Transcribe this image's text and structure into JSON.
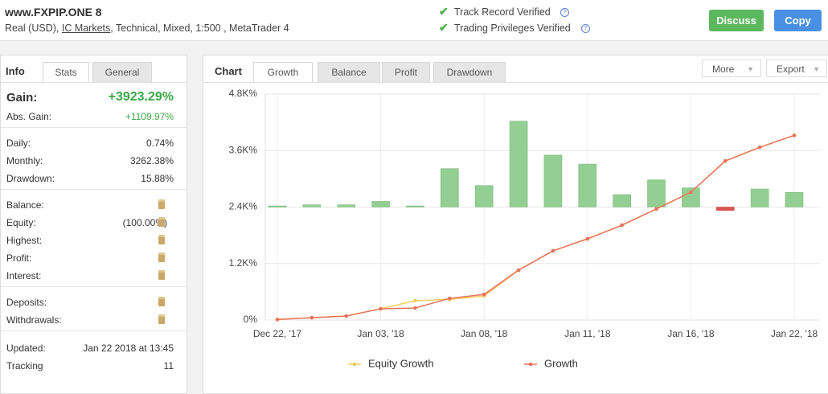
{
  "header": {
    "title": "www.FXPIP.ONE 8",
    "details": [
      "Real (USD), ",
      "IC Markets",
      ", Technical, Mixed, 1:500 , MetaTrader 4"
    ],
    "verifications": [
      "Track Record Verified",
      "Trading Privileges Verified"
    ],
    "buttons": [
      "Discuss",
      "Copy"
    ]
  },
  "info_panel": {
    "tabs": [
      "Info",
      "Stats",
      "General"
    ],
    "active_tab": 1,
    "groups": [
      [
        {
          "label": "Gain:",
          "value": "+3923.29%"
        },
        {
          "label": "Abs. Gain:",
          "value": "+1109.97%"
        }
      ],
      [
        {
          "label": "Daily:",
          "value": "0.74%"
        },
        {
          "label": "Monthly:",
          "value": "3262.38%"
        },
        {
          "label": "Drawdown:",
          "value": "15.88%"
        }
      ],
      [
        {
          "label": "Balance:",
          "locked": true
        },
        {
          "label": "Equity:",
          "value": "(100.00%)",
          "locked": true
        },
        {
          "label": "Highest:",
          "locked": true
        },
        {
          "label": "Profit:",
          "locked": true
        },
        {
          "label": "Interest:",
          "locked": true
        }
      ],
      [
        {
          "label": "Deposits:",
          "locked": true
        },
        {
          "label": "Withdrawals:",
          "locked": true
        }
      ],
      [
        {
          "label": "Updated:",
          "value": "Jan 22 2018 at 13:45"
        },
        {
          "label": "Tracking",
          "value": "11"
        }
      ]
    ]
  },
  "chart_panel": {
    "tabs": [
      "Chart",
      "Growth",
      "Balance",
      "Profit",
      "Drawdown"
    ],
    "active_tab": 1,
    "menus": [
      "More",
      "Export"
    ]
  },
  "chart_data": {
    "type": "combo",
    "categories": [
      "Dec 22, '17",
      null,
      null,
      "Jan 03, '18",
      null,
      null,
      "Jan 08, '18",
      null,
      null,
      "Jan 11, '18",
      null,
      null,
      "Jan 16, '18",
      null,
      null,
      "Jan 22, '18"
    ],
    "ylim": [
      0,
      4800
    ],
    "yticks": [
      {
        "value": 0,
        "label": "0%"
      },
      {
        "value": 1200,
        "label": "1.2K%"
      },
      {
        "value": 2400,
        "label": "2.4K%"
      },
      {
        "value": 3600,
        "label": "3.6K%"
      },
      {
        "value": 4800,
        "label": "4.8K%"
      }
    ],
    "y2lim": [
      -100,
      100
    ],
    "grid": true,
    "bars": {
      "axis": "y2",
      "color": "#93cf93",
      "negative_color": "#d9534f",
      "values": [
        1,
        2,
        2,
        5,
        1,
        34,
        19,
        76,
        46,
        38,
        11,
        24,
        17,
        -3,
        16,
        13
      ]
    },
    "series": [
      {
        "name": "Equity Growth",
        "color": "#f2cc5c",
        "values": [
          10,
          50,
          85,
          240,
          410,
          440,
          510,
          1060,
          1470,
          1725,
          2015,
          2360,
          2715,
          3380,
          3670,
          3923
        ]
      },
      {
        "name": "Growth",
        "color": "#e8735a",
        "values": [
          10,
          50,
          85,
          240,
          255,
          460,
          545,
          1060,
          1470,
          1725,
          2015,
          2360,
          2715,
          3380,
          3670,
          3923
        ]
      }
    ]
  }
}
